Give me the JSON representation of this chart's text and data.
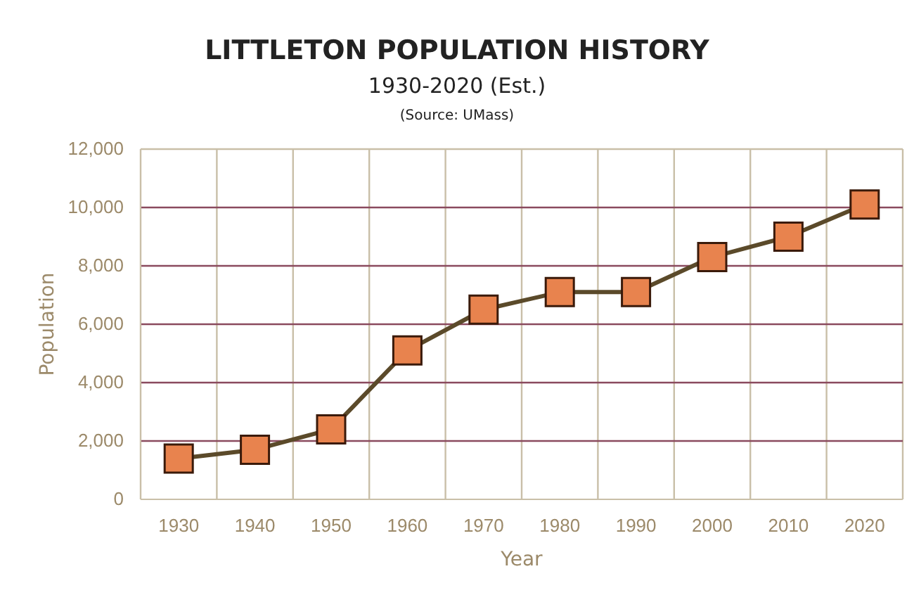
{
  "chart_data": {
    "type": "line",
    "title": "LITTLETON POPULATION HISTORY",
    "subtitle": "1930-2020 (Est.)",
    "annotations": [
      "(Source: UMass)"
    ],
    "xlabel": "Year",
    "ylabel": "Population",
    "categories": [
      "1930",
      "1940",
      "1950",
      "1960",
      "1970",
      "1980",
      "1990",
      "2000",
      "2010",
      "2020"
    ],
    "series": [
      {
        "color": "#e8834e",
        "values": [
          1400,
          1700,
          2400,
          5100,
          6500,
          7100,
          7100,
          8300,
          9000,
          10100
        ]
      }
    ],
    "ylim": [
      0,
      12000
    ],
    "yticks": [
      {
        "value": 0,
        "label": "0"
      },
      {
        "value": 2000,
        "label": "2,000"
      },
      {
        "value": 4000,
        "label": "4,000"
      },
      {
        "value": 6000,
        "label": "6,000"
      },
      {
        "value": 8000,
        "label": "8,000"
      },
      {
        "value": 10000,
        "label": "10,000"
      },
      {
        "value": 12000,
        "label": "12,000"
      }
    ],
    "grid": true,
    "marker": "square",
    "line_style": "solid"
  }
}
